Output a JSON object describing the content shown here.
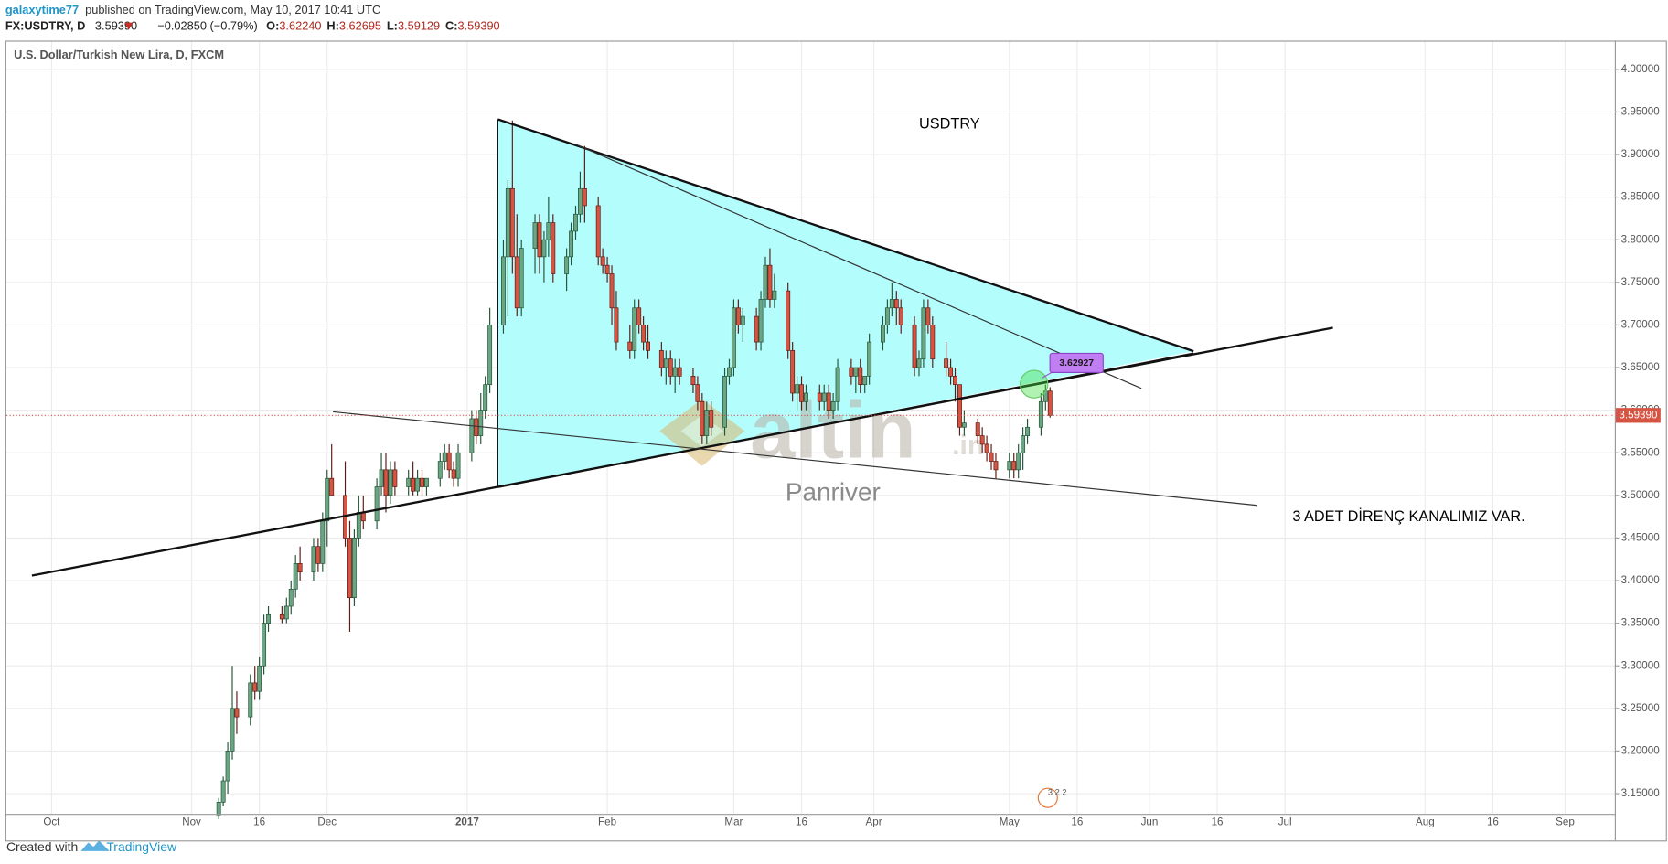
{
  "header": {
    "user": "galaxytime77",
    "published": "published on TradingView.com, May 10, 2017 10:41 UTC",
    "symbol": "FX:USDTRY, D",
    "last": "3.59390",
    "change": "−0.02850 (−0.79%)",
    "ohlc": [
      {
        "label": "O:",
        "value": "3.62240"
      },
      {
        "label": "H:",
        "value": "3.62695"
      },
      {
        "label": "L:",
        "value": "3.59129"
      },
      {
        "label": "C:",
        "value": "3.59390"
      }
    ]
  },
  "footer": {
    "created": "Created with",
    "brand": "TradingView"
  },
  "chart_data": {
    "type": "candlestick",
    "title": "U.S. Dollar/Turkish New Lira, D, FXCM",
    "up_color": "#6ba583",
    "down_color": "#d75442",
    "up_border": "#225437",
    "down_border": "#5b1a13",
    "grid": true,
    "xlim": [
      "2016-09-21",
      "2017-09-12"
    ],
    "xticks": [
      {
        "value": "2016-10-01",
        "label": "Oct"
      },
      {
        "value": "2016-11-01",
        "label": "Nov"
      },
      {
        "value": "2016-11-16",
        "label": "16"
      },
      {
        "value": "2016-12-01",
        "label": "Dec"
      },
      {
        "value": "2017-01-01",
        "label": "2017"
      },
      {
        "value": "2017-02-01",
        "label": "Feb"
      },
      {
        "value": "2017-03-01",
        "label": "Mar"
      },
      {
        "value": "2017-03-16",
        "label": "16"
      },
      {
        "value": "2017-04-01",
        "label": "Apr"
      },
      {
        "value": "2017-05-01",
        "label": "May"
      },
      {
        "value": "2017-05-16",
        "label": "16"
      },
      {
        "value": "2017-06-01",
        "label": "Jun"
      },
      {
        "value": "2017-06-16",
        "label": "16"
      },
      {
        "value": "2017-07-01",
        "label": "Jul"
      },
      {
        "value": "2017-08-01",
        "label": "Aug"
      },
      {
        "value": "2017-08-16",
        "label": "16"
      },
      {
        "value": "2017-09-01",
        "label": "Sep"
      }
    ],
    "ylim": [
      3.1263,
      4.0337
    ],
    "yticks": [
      {
        "value": 3.15,
        "label": "3.15000"
      },
      {
        "value": 3.2,
        "label": "3.20000"
      },
      {
        "value": 3.25,
        "label": "3.25000"
      },
      {
        "value": 3.3,
        "label": "3.30000"
      },
      {
        "value": 3.35,
        "label": "3.35000"
      },
      {
        "value": 3.4,
        "label": "3.40000"
      },
      {
        "value": 3.45,
        "label": "3.45000"
      },
      {
        "value": 3.5,
        "label": "3.50000"
      },
      {
        "value": 3.55,
        "label": "3.55000"
      },
      {
        "value": 3.6,
        "label": "3.60000"
      },
      {
        "value": 3.65,
        "label": "3.65000"
      },
      {
        "value": 3.7,
        "label": "3.70000"
      },
      {
        "value": 3.75,
        "label": "3.75000"
      },
      {
        "value": 3.8,
        "label": "3.80000"
      },
      {
        "value": 3.85,
        "label": "3.85000"
      },
      {
        "value": 3.9,
        "label": "3.90000"
      },
      {
        "value": 3.95,
        "label": "3.95000"
      },
      {
        "value": 4,
        "label": "4.00000"
      }
    ],
    "last_price": {
      "value": 3.5939,
      "label": "3.59390"
    },
    "annotations": {
      "symbol_note": "USDTRY",
      "channel_note": "3 ADET DİRENÇ KANALIMIZ VAR.",
      "callout": "3.62927",
      "watermark": "altin",
      "watermark_tld": ".in",
      "author": "Panriver",
      "badge": "3 2 2"
    },
    "x": [
      "2016-11-07",
      "2016-11-08",
      "2016-11-09",
      "2016-11-10",
      "2016-11-11",
      "2016-11-14",
      "2016-11-15",
      "2016-11-16",
      "2016-11-17",
      "2016-11-18",
      "2016-11-21",
      "2016-11-22",
      "2016-11-23",
      "2016-11-24",
      "2016-11-25",
      "2016-11-28",
      "2016-11-29",
      "2016-11-30",
      "2016-12-01",
      "2016-12-02",
      "2016-12-05",
      "2016-12-06",
      "2016-12-07",
      "2016-12-08",
      "2016-12-09",
      "2016-12-12",
      "2016-12-13",
      "2016-12-14",
      "2016-12-15",
      "2016-12-16",
      "2016-12-19",
      "2016-12-20",
      "2016-12-21",
      "2016-12-22",
      "2016-12-23",
      "2016-12-26",
      "2016-12-27",
      "2016-12-28",
      "2016-12-29",
      "2016-12-30",
      "2017-01-02",
      "2017-01-03",
      "2017-01-04",
      "2017-01-05",
      "2017-01-06",
      "2017-01-09",
      "2017-01-10",
      "2017-01-11",
      "2017-01-12",
      "2017-01-13",
      "2017-01-16",
      "2017-01-17",
      "2017-01-18",
      "2017-01-19",
      "2017-01-20",
      "2017-01-23",
      "2017-01-24",
      "2017-01-25",
      "2017-01-26",
      "2017-01-27",
      "2017-01-30",
      "2017-01-31",
      "2017-02-01",
      "2017-02-02",
      "2017-02-03",
      "2017-02-06",
      "2017-02-07",
      "2017-02-08",
      "2017-02-09",
      "2017-02-10",
      "2017-02-13",
      "2017-02-14",
      "2017-02-15",
      "2017-02-16",
      "2017-02-17",
      "2017-02-20",
      "2017-02-21",
      "2017-02-22",
      "2017-02-23",
      "2017-02-24",
      "2017-02-27",
      "2017-02-28",
      "2017-03-01",
      "2017-03-02",
      "2017-03-03",
      "2017-03-06",
      "2017-03-07",
      "2017-03-08",
      "2017-03-09",
      "2017-03-10",
      "2017-03-13",
      "2017-03-14",
      "2017-03-15",
      "2017-03-16",
      "2017-03-17",
      "2017-03-20",
      "2017-03-21",
      "2017-03-22",
      "2017-03-23",
      "2017-03-24",
      "2017-03-27",
      "2017-03-28",
      "2017-03-29",
      "2017-03-30",
      "2017-03-31",
      "2017-04-03",
      "2017-04-04",
      "2017-04-05",
      "2017-04-06",
      "2017-04-07",
      "2017-04-10",
      "2017-04-11",
      "2017-04-12",
      "2017-04-13",
      "2017-04-14",
      "2017-04-17",
      "2017-04-18",
      "2017-04-19",
      "2017-04-20",
      "2017-04-21",
      "2017-04-24",
      "2017-04-25",
      "2017-04-26",
      "2017-04-27",
      "2017-04-28",
      "2017-05-01",
      "2017-05-02",
      "2017-05-03",
      "2017-05-04",
      "2017-05-05",
      "2017-05-08",
      "2017-05-09",
      "2017-05-10"
    ],
    "ohlc": [
      [
        3.125,
        3.145,
        3.12,
        3.14
      ],
      [
        3.14,
        3.17,
        3.135,
        3.165
      ],
      [
        3.165,
        3.21,
        3.15,
        3.2
      ],
      [
        3.2,
        3.3,
        3.19,
        3.25
      ],
      [
        3.25,
        3.27,
        3.22,
        3.24
      ],
      [
        3.24,
        3.29,
        3.23,
        3.28
      ],
      [
        3.28,
        3.3,
        3.26,
        3.27
      ],
      [
        3.27,
        3.31,
        3.26,
        3.3
      ],
      [
        3.3,
        3.36,
        3.29,
        3.35
      ],
      [
        3.35,
        3.37,
        3.34,
        3.36
      ],
      [
        3.36,
        3.37,
        3.35,
        3.355
      ],
      [
        3.355,
        3.38,
        3.35,
        3.37
      ],
      [
        3.37,
        3.4,
        3.36,
        3.39
      ],
      [
        3.39,
        3.43,
        3.38,
        3.42
      ],
      [
        3.42,
        3.44,
        3.4,
        3.41
      ],
      [
        3.41,
        3.45,
        3.4,
        3.44
      ],
      [
        3.44,
        3.45,
        3.41,
        3.42
      ],
      [
        3.42,
        3.48,
        3.41,
        3.47
      ],
      [
        3.47,
        3.53,
        3.44,
        3.52
      ],
      [
        3.52,
        3.56,
        3.5,
        3.5
      ],
      [
        3.5,
        3.54,
        3.44,
        3.45
      ],
      [
        3.45,
        3.47,
        3.34,
        3.38
      ],
      [
        3.38,
        3.46,
        3.37,
        3.45
      ],
      [
        3.45,
        3.5,
        3.44,
        3.48
      ],
      [
        3.48,
        3.5,
        3.46,
        3.47
      ],
      [
        3.47,
        3.52,
        3.46,
        3.51
      ],
      [
        3.51,
        3.55,
        3.5,
        3.53
      ],
      [
        3.53,
        3.55,
        3.48,
        3.5
      ],
      [
        3.5,
        3.54,
        3.49,
        3.53
      ],
      [
        3.53,
        3.54,
        3.5,
        3.51
      ],
      [
        3.51,
        3.53,
        3.5,
        3.52
      ],
      [
        3.52,
        3.54,
        3.5,
        3.505
      ],
      [
        3.505,
        3.53,
        3.5,
        3.52
      ],
      [
        3.52,
        3.53,
        3.5,
        3.51
      ],
      [
        3.51,
        3.52,
        3.5,
        3.52
      ],
      [
        3.52,
        3.55,
        3.51,
        3.54
      ],
      [
        3.54,
        3.56,
        3.53,
        3.55
      ],
      [
        3.55,
        3.56,
        3.52,
        3.53
      ],
      [
        3.53,
        3.54,
        3.51,
        3.52
      ],
      [
        3.52,
        3.56,
        3.51,
        3.55
      ],
      [
        3.55,
        3.6,
        3.54,
        3.59
      ],
      [
        3.59,
        3.6,
        3.56,
        3.57
      ],
      [
        3.57,
        3.62,
        3.56,
        3.6
      ],
      [
        3.6,
        3.64,
        3.59,
        3.63
      ],
      [
        3.63,
        3.72,
        3.62,
        3.7
      ],
      [
        3.7,
        3.8,
        3.69,
        3.78
      ],
      [
        3.78,
        3.87,
        3.71,
        3.86
      ],
      [
        3.86,
        3.94,
        3.76,
        3.78
      ],
      [
        3.78,
        3.83,
        3.71,
        3.72
      ],
      [
        3.72,
        3.8,
        3.71,
        3.79
      ],
      [
        3.79,
        3.83,
        3.76,
        3.82
      ],
      [
        3.82,
        3.83,
        3.76,
        3.78
      ],
      [
        3.78,
        3.81,
        3.75,
        3.8
      ],
      [
        3.8,
        3.85,
        3.78,
        3.82
      ],
      [
        3.82,
        3.83,
        3.75,
        3.76
      ],
      [
        3.76,
        3.79,
        3.74,
        3.78
      ],
      [
        3.78,
        3.82,
        3.77,
        3.81
      ],
      [
        3.81,
        3.84,
        3.8,
        3.83
      ],
      [
        3.83,
        3.88,
        3.82,
        3.86
      ],
      [
        3.86,
        3.91,
        3.82,
        3.84
      ],
      [
        3.84,
        3.85,
        3.77,
        3.78
      ],
      [
        3.78,
        3.79,
        3.76,
        3.77
      ],
      [
        3.77,
        3.78,
        3.75,
        3.76
      ],
      [
        3.76,
        3.77,
        3.7,
        3.72
      ],
      [
        3.72,
        3.74,
        3.67,
        3.68
      ],
      [
        3.68,
        3.7,
        3.66,
        3.67
      ],
      [
        3.67,
        3.73,
        3.66,
        3.72
      ],
      [
        3.72,
        3.73,
        3.69,
        3.7
      ],
      [
        3.7,
        3.71,
        3.67,
        3.68
      ],
      [
        3.68,
        3.7,
        3.66,
        3.67
      ],
      [
        3.67,
        3.68,
        3.64,
        3.65
      ],
      [
        3.65,
        3.67,
        3.63,
        3.66
      ],
      [
        3.66,
        3.67,
        3.63,
        3.64
      ],
      [
        3.64,
        3.66,
        3.62,
        3.65
      ],
      [
        3.65,
        3.66,
        3.63,
        3.64
      ],
      [
        3.64,
        3.65,
        3.62,
        3.63
      ],
      [
        3.63,
        3.64,
        3.6,
        3.61
      ],
      [
        3.61,
        3.62,
        3.56,
        3.57
      ],
      [
        3.57,
        3.61,
        3.56,
        3.6
      ],
      [
        3.6,
        3.61,
        3.57,
        3.58
      ],
      [
        3.58,
        3.65,
        3.57,
        3.64
      ],
      [
        3.64,
        3.66,
        3.63,
        3.65
      ],
      [
        3.65,
        3.73,
        3.64,
        3.72
      ],
      [
        3.72,
        3.73,
        3.69,
        3.7
      ],
      [
        3.7,
        3.72,
        3.68,
        3.71
      ],
      [
        3.71,
        3.72,
        3.67,
        3.68
      ],
      [
        3.68,
        3.74,
        3.67,
        3.73
      ],
      [
        3.73,
        3.78,
        3.72,
        3.77
      ],
      [
        3.77,
        3.79,
        3.72,
        3.73
      ],
      [
        3.73,
        3.76,
        3.72,
        3.74
      ],
      [
        3.74,
        3.75,
        3.66,
        3.67
      ],
      [
        3.67,
        3.68,
        3.61,
        3.62
      ],
      [
        3.62,
        3.64,
        3.6,
        3.63
      ],
      [
        3.63,
        3.64,
        3.6,
        3.61
      ],
      [
        3.61,
        3.63,
        3.6,
        3.62
      ],
      [
        3.62,
        3.63,
        3.6,
        3.61
      ],
      [
        3.61,
        3.63,
        3.6,
        3.62
      ],
      [
        3.62,
        3.63,
        3.59,
        3.6
      ],
      [
        3.6,
        3.62,
        3.59,
        3.61
      ],
      [
        3.61,
        3.66,
        3.6,
        3.65
      ],
      [
        3.65,
        3.66,
        3.63,
        3.64
      ],
      [
        3.64,
        3.65,
        3.62,
        3.65
      ],
      [
        3.65,
        3.66,
        3.62,
        3.63
      ],
      [
        3.63,
        3.64,
        3.62,
        3.64
      ],
      [
        3.64,
        3.69,
        3.63,
        3.68
      ],
      [
        3.68,
        3.71,
        3.67,
        3.7
      ],
      [
        3.7,
        3.73,
        3.69,
        3.72
      ],
      [
        3.72,
        3.75,
        3.71,
        3.73
      ],
      [
        3.73,
        3.74,
        3.7,
        3.72
      ],
      [
        3.72,
        3.73,
        3.69,
        3.7
      ],
      [
        3.7,
        3.71,
        3.64,
        3.65
      ],
      [
        3.65,
        3.67,
        3.64,
        3.66
      ],
      [
        3.66,
        3.73,
        3.65,
        3.72
      ],
      [
        3.72,
        3.73,
        3.69,
        3.7
      ],
      [
        3.7,
        3.71,
        3.65,
        3.66
      ],
      [
        3.66,
        3.68,
        3.64,
        3.65
      ],
      [
        3.65,
        3.66,
        3.63,
        3.64
      ],
      [
        3.64,
        3.65,
        3.61,
        3.63
      ],
      [
        3.63,
        3.63,
        3.57,
        3.58
      ],
      [
        3.58,
        3.6,
        3.57,
        3.585
      ],
      [
        3.585,
        3.59,
        3.56,
        3.57
      ],
      [
        3.57,
        3.58,
        3.55,
        3.56
      ],
      [
        3.56,
        3.57,
        3.54,
        3.55
      ],
      [
        3.55,
        3.56,
        3.53,
        3.54
      ],
      [
        3.54,
        3.55,
        3.52,
        3.53
      ],
      [
        3.53,
        3.55,
        3.52,
        3.54
      ],
      [
        3.54,
        3.55,
        3.52,
        3.53
      ],
      [
        3.53,
        3.56,
        3.52,
        3.55
      ],
      [
        3.55,
        3.58,
        3.53,
        3.57
      ],
      [
        3.57,
        3.59,
        3.56,
        3.58
      ],
      [
        3.58,
        3.62,
        3.57,
        3.61
      ],
      [
        3.61,
        3.63,
        3.6,
        3.6224
      ],
      [
        3.6224,
        3.62695,
        3.59129,
        3.5939
      ]
    ]
  }
}
